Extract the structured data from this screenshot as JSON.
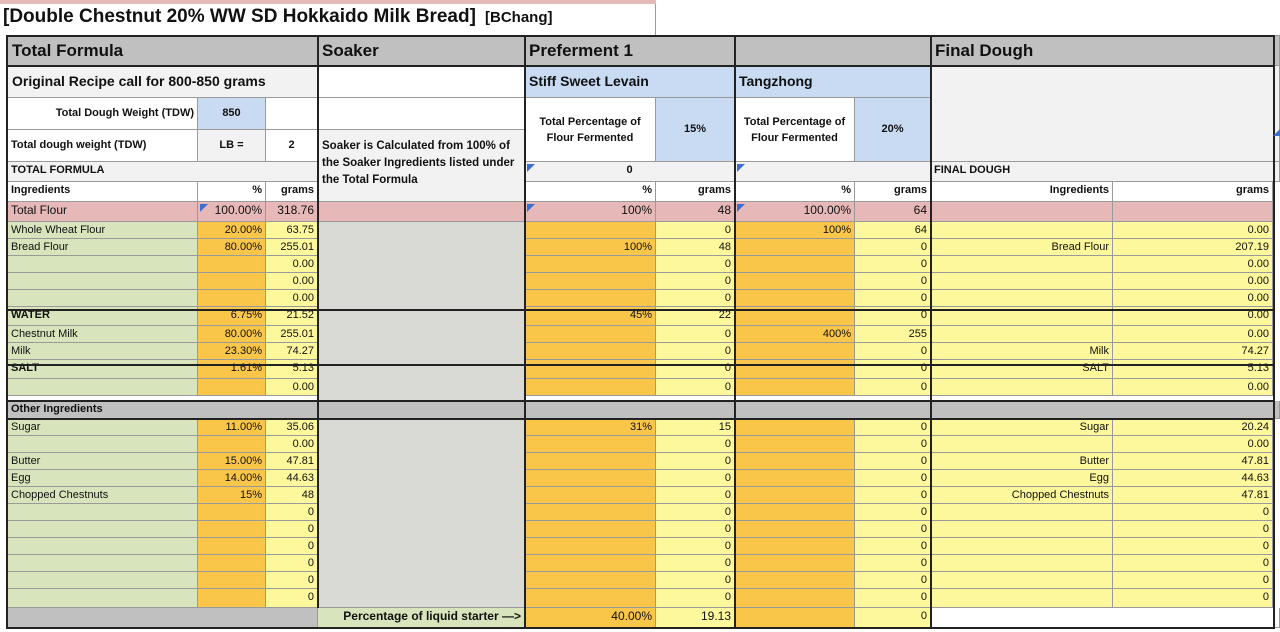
{
  "title": {
    "main": "[Double Chestnut 20% WW SD Hokkaido Milk Bread]",
    "author": "[BChang]"
  },
  "headers": {
    "total_formula": "Total Formula",
    "soaker": "Soaker",
    "preferment1": "Preferment 1",
    "final_dough": "Final Dough"
  },
  "subheaders": {
    "original_recipe": "Original Recipe call for 800-850 grams",
    "stiff_levain": "Stiff Sweet Levain",
    "tangzhong": "Tangzhong"
  },
  "tdw": {
    "label1": "Total Dough Weight (TDW)",
    "value1": "850",
    "label2": "Total dough weight (TDW)",
    "lb_label": "LB =",
    "lb_value": "2"
  },
  "soaker_note": "Soaker is Calculated from 100% of the Soaker Ingredients listed under the Total Formula",
  "pf1": {
    "label": "Total Percentage of Flour Fermented",
    "pct": "15%",
    "zero": "0"
  },
  "tz": {
    "label": "Total Percentage of Flour Fermented",
    "pct": "20%"
  },
  "section": {
    "total_formula": "TOTAL FORMULA",
    "final_dough": "FINAL DOUGH",
    "other_ingredients": "Other Ingredients"
  },
  "col": {
    "ingredients": "Ingredients",
    "pct": "%",
    "grams": "grams"
  },
  "total_flour": {
    "name": "Total Flour",
    "tf_pct": "100.00%",
    "tf_g": "318.76",
    "pf_pct": "100%",
    "pf_g": "48",
    "tz_pct": "100.00%",
    "tz_g": "64"
  },
  "rows": [
    {
      "name": "Whole Wheat Flour",
      "bold": false,
      "tf_pct": "20.00%",
      "tf_g": "63.75",
      "pf_pct": "",
      "pf_g": "0",
      "tz_pct": "100%",
      "tz_g": "64",
      "fd_name": "",
      "fd_g": "0.00"
    },
    {
      "name": "Bread Flour",
      "bold": false,
      "tf_pct": "80.00%",
      "tf_g": "255.01",
      "pf_pct": "100%",
      "pf_g": "48",
      "tz_pct": "",
      "tz_g": "0",
      "fd_name": "Bread Flour",
      "fd_g": "207.19"
    },
    {
      "name": "",
      "bold": false,
      "tf_pct": "",
      "tf_g": "0.00",
      "pf_pct": "",
      "pf_g": "0",
      "tz_pct": "",
      "tz_g": "0",
      "fd_name": "",
      "fd_g": "0.00"
    },
    {
      "name": "",
      "bold": false,
      "tf_pct": "",
      "tf_g": "0.00",
      "pf_pct": "",
      "pf_g": "0",
      "tz_pct": "",
      "tz_g": "0",
      "fd_name": "",
      "fd_g": "0.00"
    },
    {
      "name": "",
      "bold": false,
      "tf_pct": "",
      "tf_g": "0.00",
      "pf_pct": "",
      "pf_g": "0",
      "tz_pct": "",
      "tz_g": "0",
      "fd_name": "",
      "fd_g": "0.00"
    },
    {
      "name": "WATER",
      "bold": true,
      "tf_pct": "6.75%",
      "tf_g": "21.52",
      "pf_pct": "45%",
      "pf_g": "22",
      "tz_pct": "",
      "tz_g": "0",
      "fd_name": "",
      "fd_g": "0.00"
    },
    {
      "name": "Chestnut Milk",
      "bold": false,
      "tf_pct": "80.00%",
      "tf_g": "255.01",
      "pf_pct": "",
      "pf_g": "0",
      "tz_pct": "400%",
      "tz_g": "255",
      "fd_name": "",
      "fd_g": "0.00"
    },
    {
      "name": "Milk",
      "bold": false,
      "tf_pct": "23.30%",
      "tf_g": "74.27",
      "pf_pct": "",
      "pf_g": "0",
      "tz_pct": "",
      "tz_g": "0",
      "fd_name": "Milk",
      "fd_g": "74.27"
    },
    {
      "name": "SALT",
      "bold": true,
      "tf_pct": "1.61%",
      "tf_g": "5.13",
      "pf_pct": "",
      "pf_g": "0",
      "tz_pct": "",
      "tz_g": "0",
      "fd_name": "SALT",
      "fd_g": "5.13"
    },
    {
      "name": "",
      "bold": false,
      "tf_pct": "",
      "tf_g": "0.00",
      "pf_pct": "",
      "pf_g": "0",
      "tz_pct": "",
      "tz_g": "0",
      "fd_name": "",
      "fd_g": "0.00"
    }
  ],
  "other_rows": [
    {
      "name": "Sugar",
      "tf_pct": "11.00%",
      "tf_g": "35.06",
      "pf_pct": "31%",
      "pf_g": "15",
      "tz_pct": "",
      "tz_g": "0",
      "fd_name": "Sugar",
      "fd_g": "20.24"
    },
    {
      "name": "",
      "tf_pct": "",
      "tf_g": "0.00",
      "pf_pct": "",
      "pf_g": "0",
      "tz_pct": "",
      "tz_g": "0",
      "fd_name": "",
      "fd_g": "0.00"
    },
    {
      "name": "Butter",
      "tf_pct": "15.00%",
      "tf_g": "47.81",
      "pf_pct": "",
      "pf_g": "0",
      "tz_pct": "",
      "tz_g": "0",
      "fd_name": "Butter",
      "fd_g": "47.81"
    },
    {
      "name": "Egg",
      "tf_pct": "14.00%",
      "tf_g": "44.63",
      "pf_pct": "",
      "pf_g": "0",
      "tz_pct": "",
      "tz_g": "0",
      "fd_name": "Egg",
      "fd_g": "44.63"
    },
    {
      "name": "Chopped Chestnuts",
      "tf_pct": "15%",
      "tf_g": "48",
      "pf_pct": "",
      "pf_g": "0",
      "tz_pct": "",
      "tz_g": "0",
      "fd_name": "Chopped Chestnuts",
      "fd_g": "47.81"
    },
    {
      "name": "",
      "tf_pct": "",
      "tf_g": "0",
      "pf_pct": "",
      "pf_g": "0",
      "tz_pct": "",
      "tz_g": "0",
      "fd_name": "",
      "fd_g": "0"
    },
    {
      "name": "",
      "tf_pct": "",
      "tf_g": "0",
      "pf_pct": "",
      "pf_g": "0",
      "tz_pct": "",
      "tz_g": "0",
      "fd_name": "",
      "fd_g": "0"
    },
    {
      "name": "",
      "tf_pct": "",
      "tf_g": "0",
      "pf_pct": "",
      "pf_g": "0",
      "tz_pct": "",
      "tz_g": "0",
      "fd_name": "",
      "fd_g": "0"
    },
    {
      "name": "",
      "tf_pct": "",
      "tf_g": "0",
      "pf_pct": "",
      "pf_g": "0",
      "tz_pct": "",
      "tz_g": "0",
      "fd_name": "",
      "fd_g": "0"
    },
    {
      "name": "",
      "tf_pct": "",
      "tf_g": "0",
      "pf_pct": "",
      "pf_g": "0",
      "tz_pct": "",
      "tz_g": "0",
      "fd_name": "",
      "fd_g": "0"
    },
    {
      "name": "",
      "tf_pct": "",
      "tf_g": "0",
      "pf_pct": "",
      "pf_g": "0",
      "tz_pct": "",
      "tz_g": "0",
      "fd_name": "",
      "fd_g": "0"
    }
  ],
  "bottom": {
    "liquid_label": "Percentage of liquid starter —>",
    "pct": "40.00%",
    "g": "19.13",
    "tz_g": "0"
  }
}
